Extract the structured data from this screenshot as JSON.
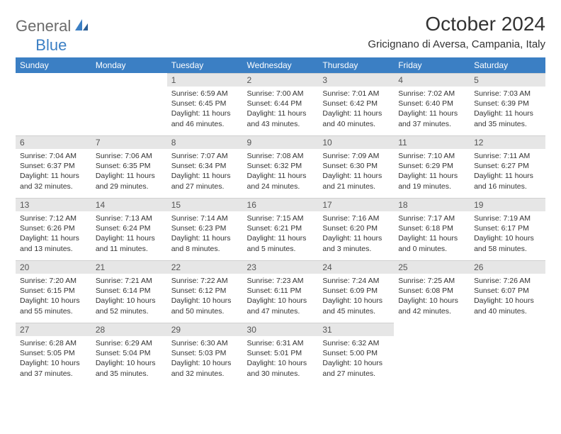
{
  "logo": {
    "text1": "General",
    "text2": "Blue"
  },
  "title": "October 2024",
  "location": "Gricignano di Aversa, Campania, Italy",
  "colors": {
    "header_bg": "#3b7fc4",
    "header_fg": "#ffffff",
    "daynum_bg": "#e6e6e6",
    "page_bg": "#ffffff",
    "text": "#333333"
  },
  "weekdays": [
    "Sunday",
    "Monday",
    "Tuesday",
    "Wednesday",
    "Thursday",
    "Friday",
    "Saturday"
  ],
  "weeks": [
    [
      null,
      null,
      {
        "n": "1",
        "sr": "6:59 AM",
        "ss": "6:45 PM",
        "dl": "11 hours and 46 minutes."
      },
      {
        "n": "2",
        "sr": "7:00 AM",
        "ss": "6:44 PM",
        "dl": "11 hours and 43 minutes."
      },
      {
        "n": "3",
        "sr": "7:01 AM",
        "ss": "6:42 PM",
        "dl": "11 hours and 40 minutes."
      },
      {
        "n": "4",
        "sr": "7:02 AM",
        "ss": "6:40 PM",
        "dl": "11 hours and 37 minutes."
      },
      {
        "n": "5",
        "sr": "7:03 AM",
        "ss": "6:39 PM",
        "dl": "11 hours and 35 minutes."
      }
    ],
    [
      {
        "n": "6",
        "sr": "7:04 AM",
        "ss": "6:37 PM",
        "dl": "11 hours and 32 minutes."
      },
      {
        "n": "7",
        "sr": "7:06 AM",
        "ss": "6:35 PM",
        "dl": "11 hours and 29 minutes."
      },
      {
        "n": "8",
        "sr": "7:07 AM",
        "ss": "6:34 PM",
        "dl": "11 hours and 27 minutes."
      },
      {
        "n": "9",
        "sr": "7:08 AM",
        "ss": "6:32 PM",
        "dl": "11 hours and 24 minutes."
      },
      {
        "n": "10",
        "sr": "7:09 AM",
        "ss": "6:30 PM",
        "dl": "11 hours and 21 minutes."
      },
      {
        "n": "11",
        "sr": "7:10 AM",
        "ss": "6:29 PM",
        "dl": "11 hours and 19 minutes."
      },
      {
        "n": "12",
        "sr": "7:11 AM",
        "ss": "6:27 PM",
        "dl": "11 hours and 16 minutes."
      }
    ],
    [
      {
        "n": "13",
        "sr": "7:12 AM",
        "ss": "6:26 PM",
        "dl": "11 hours and 13 minutes."
      },
      {
        "n": "14",
        "sr": "7:13 AM",
        "ss": "6:24 PM",
        "dl": "11 hours and 11 minutes."
      },
      {
        "n": "15",
        "sr": "7:14 AM",
        "ss": "6:23 PM",
        "dl": "11 hours and 8 minutes."
      },
      {
        "n": "16",
        "sr": "7:15 AM",
        "ss": "6:21 PM",
        "dl": "11 hours and 5 minutes."
      },
      {
        "n": "17",
        "sr": "7:16 AM",
        "ss": "6:20 PM",
        "dl": "11 hours and 3 minutes."
      },
      {
        "n": "18",
        "sr": "7:17 AM",
        "ss": "6:18 PM",
        "dl": "11 hours and 0 minutes."
      },
      {
        "n": "19",
        "sr": "7:19 AM",
        "ss": "6:17 PM",
        "dl": "10 hours and 58 minutes."
      }
    ],
    [
      {
        "n": "20",
        "sr": "7:20 AM",
        "ss": "6:15 PM",
        "dl": "10 hours and 55 minutes."
      },
      {
        "n": "21",
        "sr": "7:21 AM",
        "ss": "6:14 PM",
        "dl": "10 hours and 52 minutes."
      },
      {
        "n": "22",
        "sr": "7:22 AM",
        "ss": "6:12 PM",
        "dl": "10 hours and 50 minutes."
      },
      {
        "n": "23",
        "sr": "7:23 AM",
        "ss": "6:11 PM",
        "dl": "10 hours and 47 minutes."
      },
      {
        "n": "24",
        "sr": "7:24 AM",
        "ss": "6:09 PM",
        "dl": "10 hours and 45 minutes."
      },
      {
        "n": "25",
        "sr": "7:25 AM",
        "ss": "6:08 PM",
        "dl": "10 hours and 42 minutes."
      },
      {
        "n": "26",
        "sr": "7:26 AM",
        "ss": "6:07 PM",
        "dl": "10 hours and 40 minutes."
      }
    ],
    [
      {
        "n": "27",
        "sr": "6:28 AM",
        "ss": "5:05 PM",
        "dl": "10 hours and 37 minutes."
      },
      {
        "n": "28",
        "sr": "6:29 AM",
        "ss": "5:04 PM",
        "dl": "10 hours and 35 minutes."
      },
      {
        "n": "29",
        "sr": "6:30 AM",
        "ss": "5:03 PM",
        "dl": "10 hours and 32 minutes."
      },
      {
        "n": "30",
        "sr": "6:31 AM",
        "ss": "5:01 PM",
        "dl": "10 hours and 30 minutes."
      },
      {
        "n": "31",
        "sr": "6:32 AM",
        "ss": "5:00 PM",
        "dl": "10 hours and 27 minutes."
      },
      null,
      null
    ]
  ],
  "labels": {
    "sunrise": "Sunrise:",
    "sunset": "Sunset:",
    "daylight": "Daylight:"
  }
}
